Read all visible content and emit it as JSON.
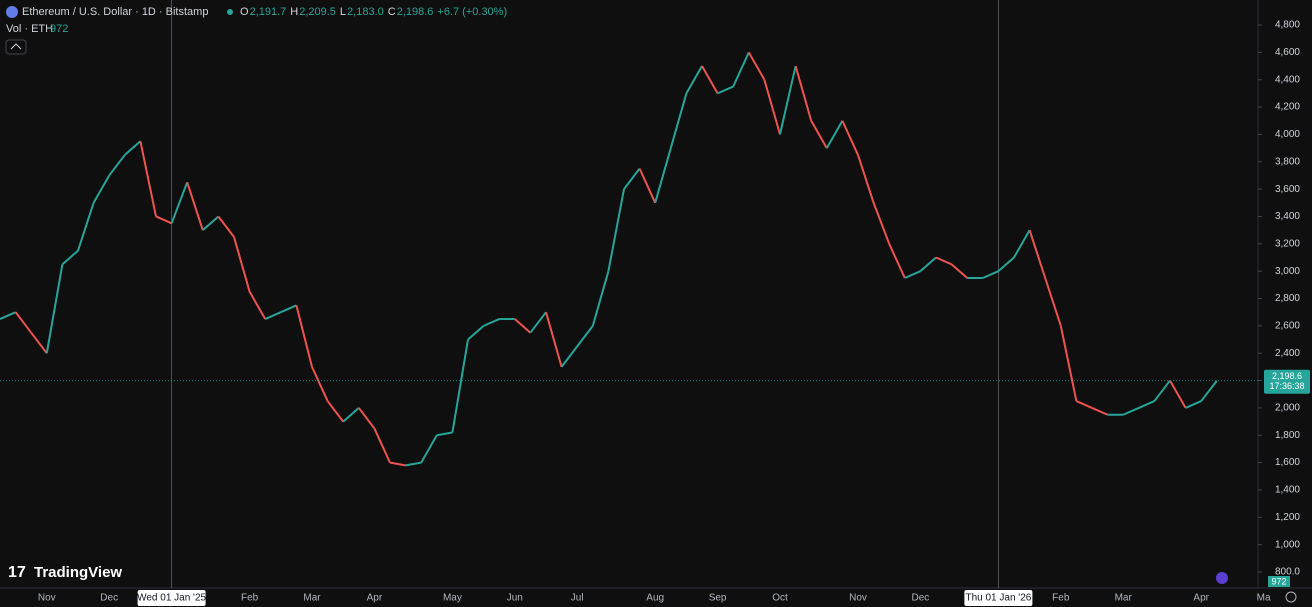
{
  "chart_data": {
    "type": "line",
    "title": "Ethereum / U.S. Dollar · 1D · Bitstamp",
    "ohlc": [
      {
        "name": "O",
        "value": 2191.7,
        "label": "2,191.7"
      },
      {
        "name": "H",
        "value": 2209.5,
        "label": "2,209.5"
      },
      {
        "name": "L",
        "value": 2183.0,
        "label": "2,183.0"
      },
      {
        "name": "C",
        "value": 2198.6,
        "label": "2,198.6"
      }
    ],
    "change": "+6.7 (+0.30%)",
    "volume_label": "Vol · ETH",
    "volume": 972,
    "brand": "TradingView",
    "last_price": {
      "value": 2198.6,
      "label": "2,198.6",
      "countdown": "17:36:38"
    },
    "categories": [
      null,
      null,
      null,
      "Nov",
      null,
      null,
      null,
      "Dec",
      null,
      null,
      null,
      "Wed 01 Jan '25",
      null,
      null,
      null,
      null,
      "Feb",
      null,
      null,
      null,
      "Mar",
      null,
      null,
      null,
      "Apr",
      null,
      null,
      null,
      null,
      "May",
      null,
      null,
      null,
      "Jun",
      null,
      null,
      null,
      "Jul",
      null,
      null,
      null,
      null,
      "Aug",
      null,
      null,
      null,
      "Sep",
      null,
      null,
      null,
      "Oct",
      null,
      null,
      null,
      null,
      "Nov",
      null,
      null,
      null,
      "Dec",
      null,
      null,
      null,
      null,
      "Thu 01 Jan '26",
      null,
      null,
      null,
      "Feb",
      null,
      null,
      null,
      "Mar",
      null,
      null,
      null,
      null,
      "Apr",
      null,
      null,
      null,
      "Ma"
    ],
    "series": [
      {
        "name": "ETHUSD",
        "up_color": "#26a69a",
        "down_color": "#ef5350",
        "values": [
          2650,
          2700,
          2550,
          2400,
          3050,
          3150,
          3500,
          3700,
          3850,
          3950,
          3400,
          3350,
          3650,
          3300,
          3400,
          3250,
          2850,
          2650,
          2700,
          2750,
          2300,
          2050,
          1900,
          2000,
          1850,
          1600,
          1580,
          1600,
          1800,
          1820,
          2500,
          2600,
          2650,
          2650,
          2550,
          2700,
          2300,
          2450,
          2600,
          3000,
          3600,
          3750,
          3500,
          3900,
          4300,
          4500,
          4300,
          4350,
          4600,
          4400,
          4000,
          4500,
          4100,
          3900,
          4100,
          3850,
          3500,
          3200,
          2950,
          3000,
          3100,
          3050,
          2950,
          2950,
          3000,
          3100,
          3300,
          2950,
          2600,
          2050,
          2000,
          1950,
          1950,
          2000,
          2050,
          2200,
          2000,
          2050,
          2198.6,
          null,
          null,
          null
        ]
      }
    ],
    "ylim": [
      683,
      4983
    ],
    "yticks": [
      {
        "value": 800,
        "label": "800.0"
      },
      {
        "value": 1000,
        "label": "1,000"
      },
      {
        "value": 1200,
        "label": "1,200"
      },
      {
        "value": 1400,
        "label": "1,400"
      },
      {
        "value": 1600,
        "label": "1,600"
      },
      {
        "value": 1800,
        "label": "1,800"
      },
      {
        "value": 2000,
        "label": "2,000"
      },
      {
        "value": 2200,
        "label": "2,200"
      },
      {
        "value": 2400,
        "label": "2,400"
      },
      {
        "value": 2600,
        "label": "2,600"
      },
      {
        "value": 2800,
        "label": "2,800"
      },
      {
        "value": 3000,
        "label": "3,000"
      },
      {
        "value": 3200,
        "label": "3,200"
      },
      {
        "value": 3400,
        "label": "3,400"
      },
      {
        "value": 3600,
        "label": "3,600"
      },
      {
        "value": 3800,
        "label": "3,800"
      },
      {
        "value": 4000,
        "label": "4,000"
      },
      {
        "value": 4200,
        "label": "4,200"
      },
      {
        "value": 4400,
        "label": "4,400"
      },
      {
        "value": 4600,
        "label": "4,600"
      },
      {
        "value": 4800,
        "label": "4,800"
      }
    ],
    "grid": false
  }
}
